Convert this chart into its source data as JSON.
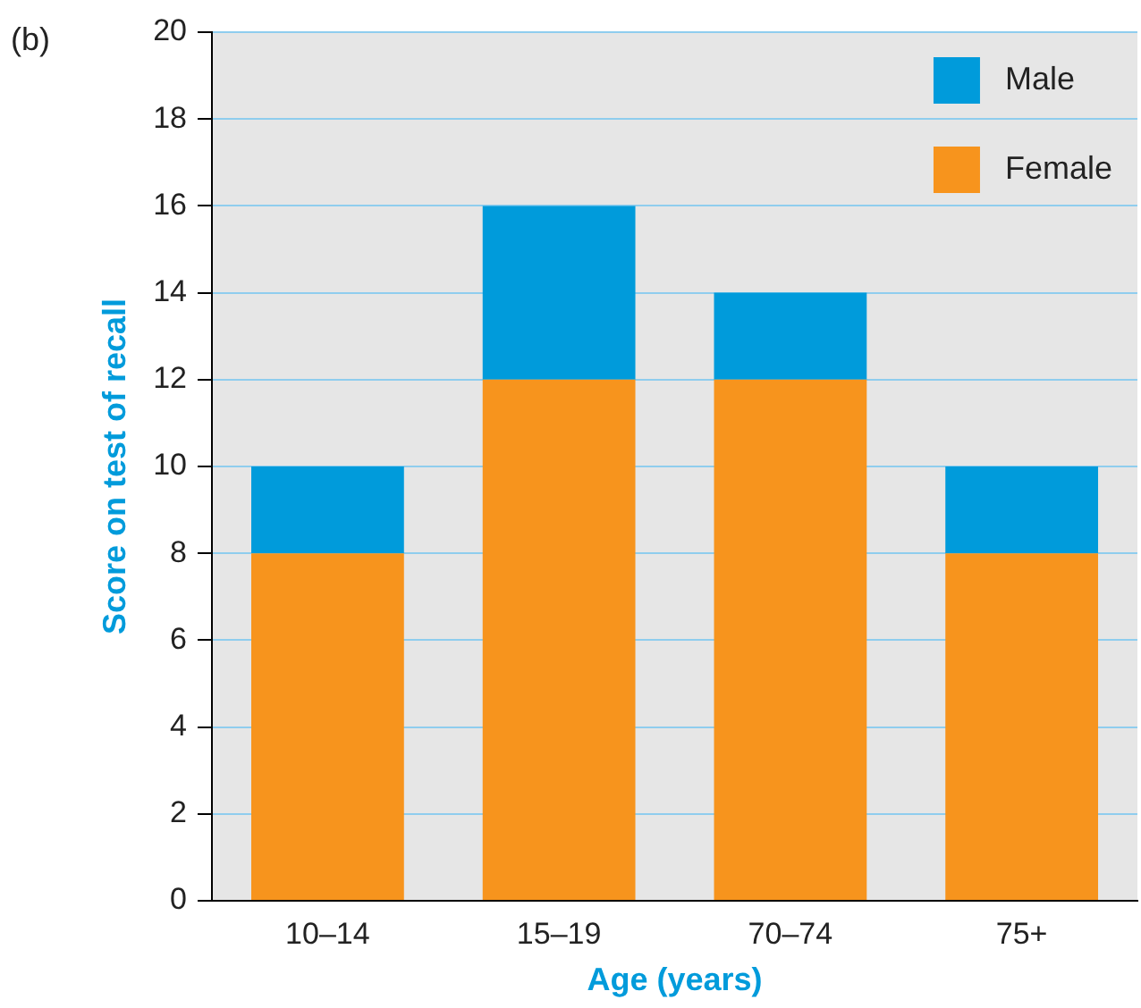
{
  "chart_data": {
    "type": "bar",
    "stacked": true,
    "xlabel": "Age (years)",
    "ylabel": "Score on test of recall",
    "annotations": [
      "(b)"
    ],
    "categories": [
      "10–14",
      "15–19",
      "70–74",
      "75+"
    ],
    "series": [
      {
        "name": "Female",
        "color": "#f7941d",
        "values": [
          8,
          12,
          12,
          8
        ]
      },
      {
        "name": "Male",
        "color": "#009bdb",
        "values": [
          2,
          4,
          2,
          2
        ]
      }
    ],
    "ylim": [
      0,
      20
    ],
    "yticks": [
      0,
      2,
      4,
      6,
      8,
      10,
      12,
      14,
      16,
      18,
      20
    ],
    "grid": "y",
    "legend": "top right"
  }
}
